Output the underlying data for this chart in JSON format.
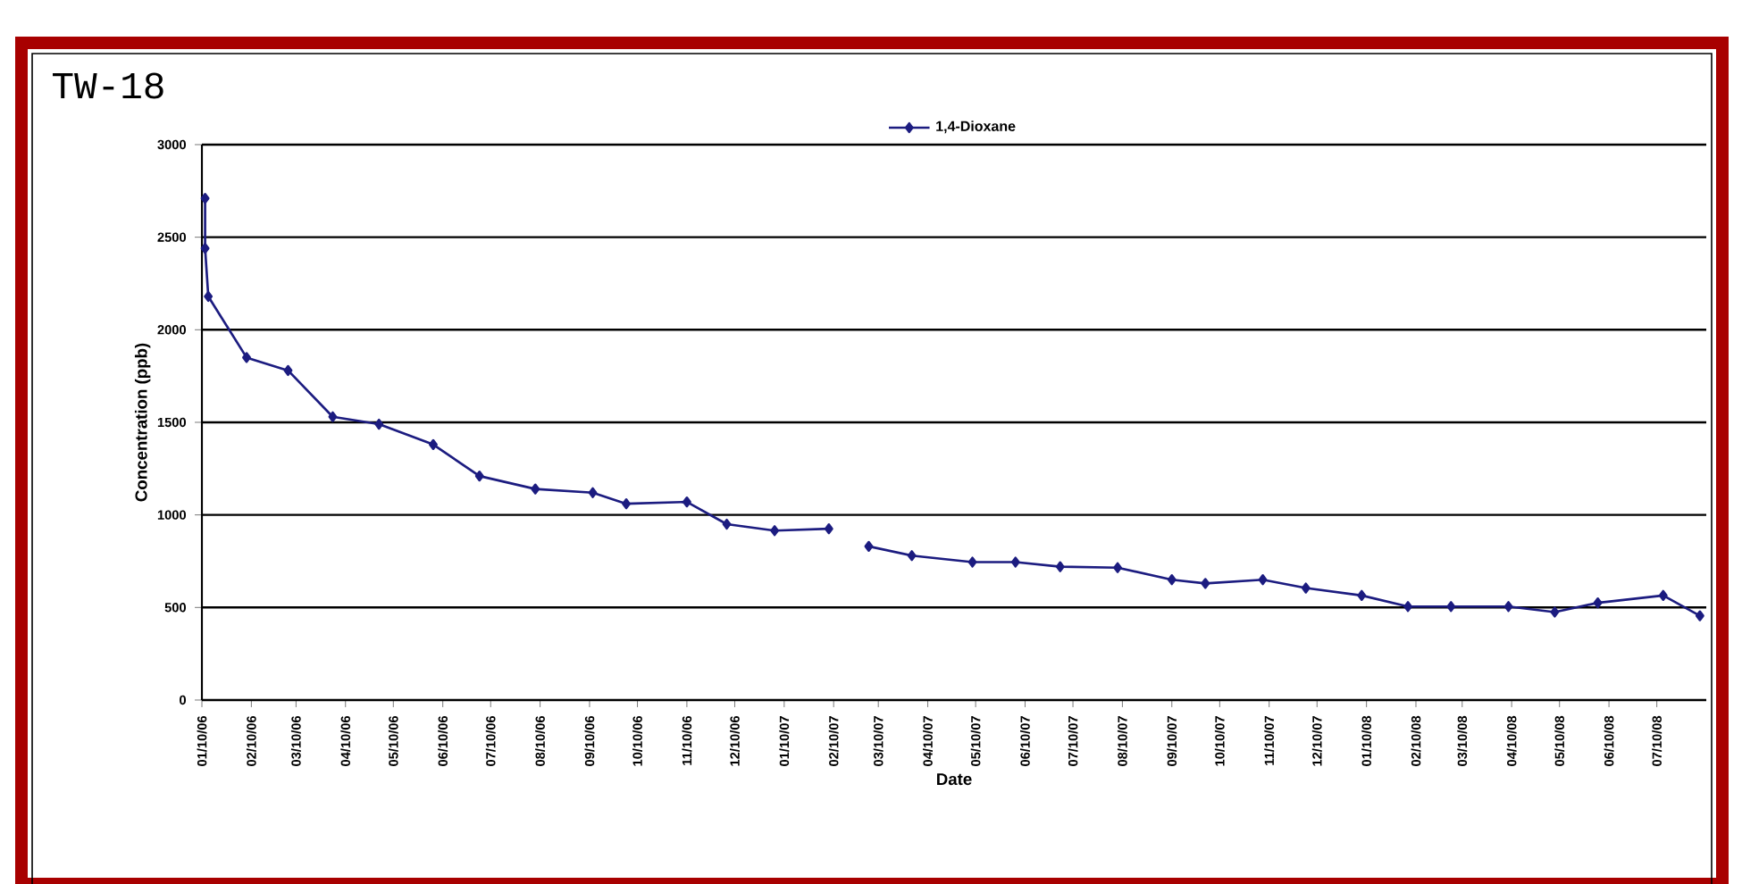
{
  "chart_data": {
    "type": "line",
    "title": "TW-18",
    "xlabel": "Date",
    "ylabel": "Concentration (ppb)",
    "x": [
      "2006-01-12",
      "2006-01-12",
      "2006-01-14",
      "2006-02-07",
      "2006-03-05",
      "2006-04-02",
      "2006-05-01",
      "2006-06-04",
      "2006-07-03",
      "2006-08-07",
      "2006-09-12",
      "2006-10-03",
      "2006-11-10",
      "2006-12-05",
      "2007-01-04",
      "2007-02-07",
      "2007-02-20",
      "2007-03-04",
      "2007-03-31",
      "2007-05-08",
      "2007-06-04",
      "2007-07-02",
      "2007-08-07",
      "2007-09-10",
      "2007-10-01",
      "2007-11-06",
      "2007-12-03",
      "2008-01-07",
      "2008-02-05",
      "2008-03-03",
      "2008-04-08",
      "2008-05-07",
      "2008-06-03",
      "2008-07-14",
      "2008-08-06"
    ],
    "series": [
      {
        "name": "1,4-Dioxane",
        "color": "#1c1c80",
        "values": [
          2710,
          2440,
          2180,
          1850,
          1780,
          1530,
          1490,
          1380,
          1210,
          1140,
          1120,
          1060,
          1070,
          950,
          915,
          925,
          null,
          830,
          780,
          745,
          745,
          720,
          715,
          650,
          630,
          650,
          605,
          565,
          505,
          505,
          505,
          475,
          525,
          565,
          455
        ]
      }
    ],
    "xlim": [
      "2006-01-10",
      "2008-08-10"
    ],
    "xticks": [
      {
        "value": "2006-01-10",
        "label": "01/10/06"
      },
      {
        "value": "2006-02-10",
        "label": "02/10/06"
      },
      {
        "value": "2006-03-10",
        "label": "03/10/06"
      },
      {
        "value": "2006-04-10",
        "label": "04/10/06"
      },
      {
        "value": "2006-05-10",
        "label": "05/10/06"
      },
      {
        "value": "2006-06-10",
        "label": "06/10/06"
      },
      {
        "value": "2006-07-10",
        "label": "07/10/06"
      },
      {
        "value": "2006-08-10",
        "label": "08/10/06"
      },
      {
        "value": "2006-09-10",
        "label": "09/10/06"
      },
      {
        "value": "2006-10-10",
        "label": "10/10/06"
      },
      {
        "value": "2006-11-10",
        "label": "11/10/06"
      },
      {
        "value": "2006-12-10",
        "label": "12/10/06"
      },
      {
        "value": "2007-01-10",
        "label": "01/10/07"
      },
      {
        "value": "2007-02-10",
        "label": "02/10/07"
      },
      {
        "value": "2007-03-10",
        "label": "03/10/07"
      },
      {
        "value": "2007-04-10",
        "label": "04/10/07"
      },
      {
        "value": "2007-05-10",
        "label": "05/10/07"
      },
      {
        "value": "2007-06-10",
        "label": "06/10/07"
      },
      {
        "value": "2007-07-10",
        "label": "07/10/07"
      },
      {
        "value": "2007-08-10",
        "label": "08/10/07"
      },
      {
        "value": "2007-09-10",
        "label": "09/10/07"
      },
      {
        "value": "2007-10-10",
        "label": "10/10/07"
      },
      {
        "value": "2007-11-10",
        "label": "11/10/07"
      },
      {
        "value": "2007-12-10",
        "label": "12/10/07"
      },
      {
        "value": "2008-01-10",
        "label": "01/10/08"
      },
      {
        "value": "2008-02-10",
        "label": "02/10/08"
      },
      {
        "value": "2008-03-10",
        "label": "03/10/08"
      },
      {
        "value": "2008-04-10",
        "label": "04/10/08"
      },
      {
        "value": "2008-05-10",
        "label": "05/10/08"
      },
      {
        "value": "2008-06-10",
        "label": "06/10/08"
      },
      {
        "value": "2008-07-10",
        "label": "07/10/08"
      }
    ],
    "ylim": [
      0,
      3000
    ],
    "yticks": [
      0,
      500,
      1000,
      1500,
      2000,
      2500,
      3000
    ],
    "grid": "y",
    "legend": "top",
    "marker": "diamond",
    "line_style": "solid"
  }
}
